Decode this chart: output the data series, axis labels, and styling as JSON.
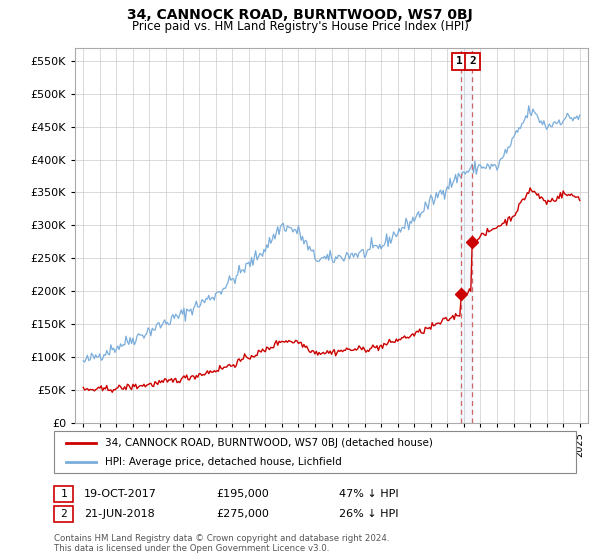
{
  "title": "34, CANNOCK ROAD, BURNTWOOD, WS7 0BJ",
  "subtitle": "Price paid vs. HM Land Registry's House Price Index (HPI)",
  "legend_label_red": "34, CANNOCK ROAD, BURNTWOOD, WS7 0BJ (detached house)",
  "legend_label_blue": "HPI: Average price, detached house, Lichfield",
  "transaction1_date": "19-OCT-2017",
  "transaction1_price": 195000,
  "transaction1_pct": "47% ↓ HPI",
  "transaction2_date": "21-JUN-2018",
  "transaction2_price": 275000,
  "transaction2_pct": "26% ↓ HPI",
  "transaction1_x": 2017.8,
  "transaction2_x": 2018.47,
  "ylim": [
    0,
    570000
  ],
  "xlim": [
    1994.5,
    2025.5
  ],
  "yticks": [
    0,
    50000,
    100000,
    150000,
    200000,
    250000,
    300000,
    350000,
    400000,
    450000,
    500000,
    550000
  ],
  "xticks": [
    1995,
    1996,
    1997,
    1998,
    1999,
    2000,
    2001,
    2002,
    2003,
    2004,
    2005,
    2006,
    2007,
    2008,
    2009,
    2010,
    2011,
    2012,
    2013,
    2014,
    2015,
    2016,
    2017,
    2018,
    2019,
    2020,
    2021,
    2022,
    2023,
    2024,
    2025
  ],
  "background_color": "#ffffff",
  "grid_color": "#cccccc",
  "line_color_red": "#cc0000",
  "line_color_blue": "#7aaddb",
  "dashed_line_color": "#cc6666",
  "footer": "Contains HM Land Registry data © Crown copyright and database right 2024.\nThis data is licensed under the Open Government Licence v3.0."
}
